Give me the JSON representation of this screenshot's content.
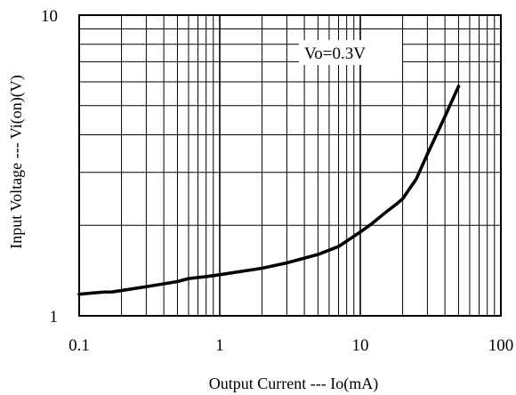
{
  "chart_data": {
    "type": "line",
    "xscale": "log",
    "yscale": "log",
    "xlim": [
      0.1,
      100
    ],
    "ylim": [
      1,
      10
    ],
    "xticks": [
      "0.1",
      "1",
      "10",
      "100"
    ],
    "yticks": [
      "1",
      "10"
    ],
    "xlabel": "Output Current --- Io(mA)",
    "ylabel": "Input Voltage --- Vi(on)(V)",
    "grid": true,
    "annotation": "Vo=0.3V",
    "series": [
      {
        "x": [
          0.1,
          0.15,
          0.17,
          0.3,
          0.5,
          0.6,
          0.8,
          1,
          2,
          3,
          5,
          7,
          10,
          12,
          15,
          18,
          20,
          25,
          30,
          40,
          50
        ],
        "y": [
          1.18,
          1.2,
          1.2,
          1.25,
          1.3,
          1.33,
          1.35,
          1.37,
          1.44,
          1.5,
          1.6,
          1.7,
          1.9,
          2.02,
          2.2,
          2.35,
          2.45,
          2.85,
          3.45,
          4.6,
          5.8
        ]
      }
    ],
    "colors": {
      "line": "#000000",
      "grid": "#000000",
      "background": "#ffffff"
    }
  }
}
